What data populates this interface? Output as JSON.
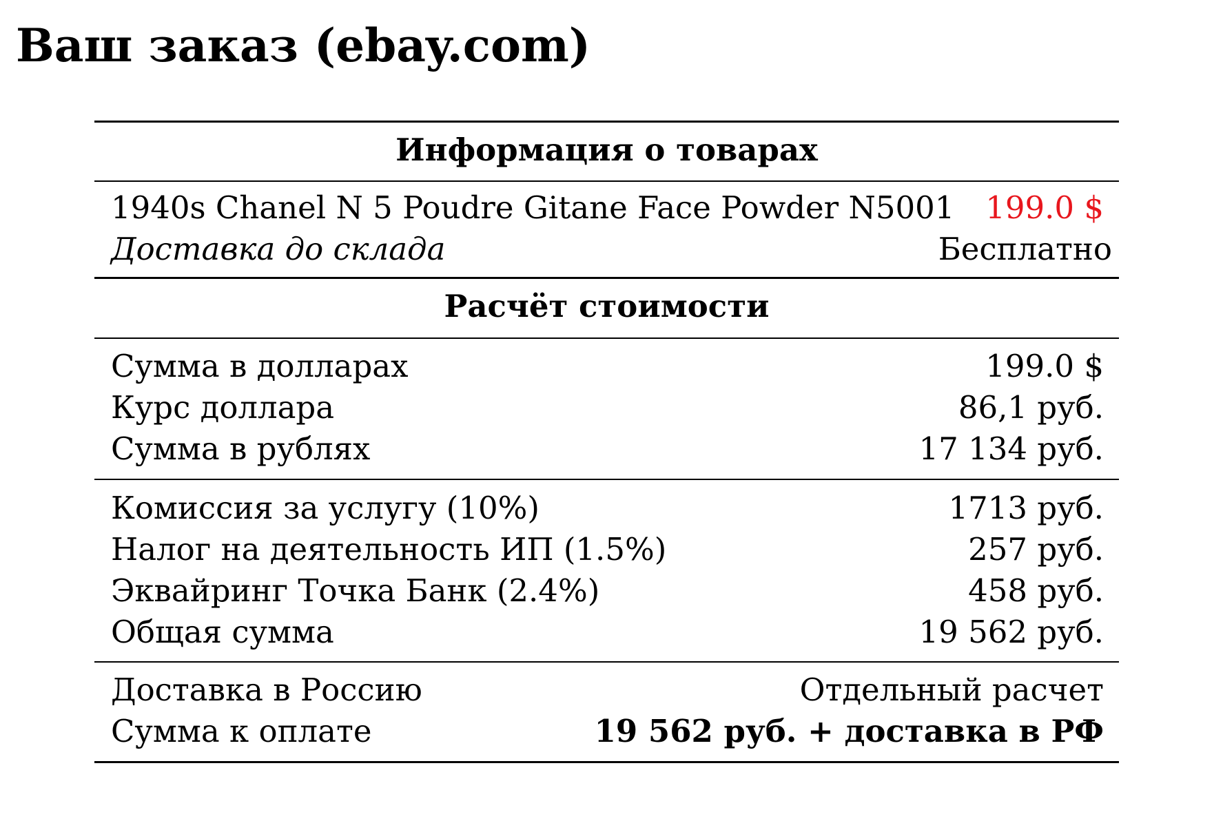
{
  "page": {
    "title": "Ваш заказ (ebay.com)"
  },
  "product_section": {
    "heading": "Информация о товарах",
    "item": {
      "name": "1940s Chanel N 5 Poudre Gitane Face Powder N5001",
      "price": "199.0 $",
      "price_color": "#e8161d"
    },
    "shipping": {
      "label": "Доставка до склада",
      "value": "Бесплатно"
    }
  },
  "cost_section": {
    "heading": "Расчёт стоимости",
    "conversion_rows": [
      {
        "label": "Сумма в долларах",
        "value": "199.0 $"
      },
      {
        "label": "Курс доллара",
        "value": "86,1 руб."
      },
      {
        "label": "Сумма в рублях",
        "value": "17 134 руб."
      }
    ],
    "fee_rows": [
      {
        "label": "Комиссия за услугу (10%)",
        "value": "1713 руб."
      },
      {
        "label": "Налог на деятельность ИП (1.5%)",
        "value": "257 руб."
      },
      {
        "label": "Эквайринг Точка Банк (2.4%)",
        "value": "458 руб."
      },
      {
        "label": "Общая сумма",
        "value": "19 562 руб."
      }
    ],
    "final_rows": [
      {
        "label": "Доставка в Россию",
        "value": "Отдельный расчет"
      },
      {
        "label": "Сумма к оплате",
        "value": "19 562 руб. + доставка в РФ"
      }
    ]
  }
}
